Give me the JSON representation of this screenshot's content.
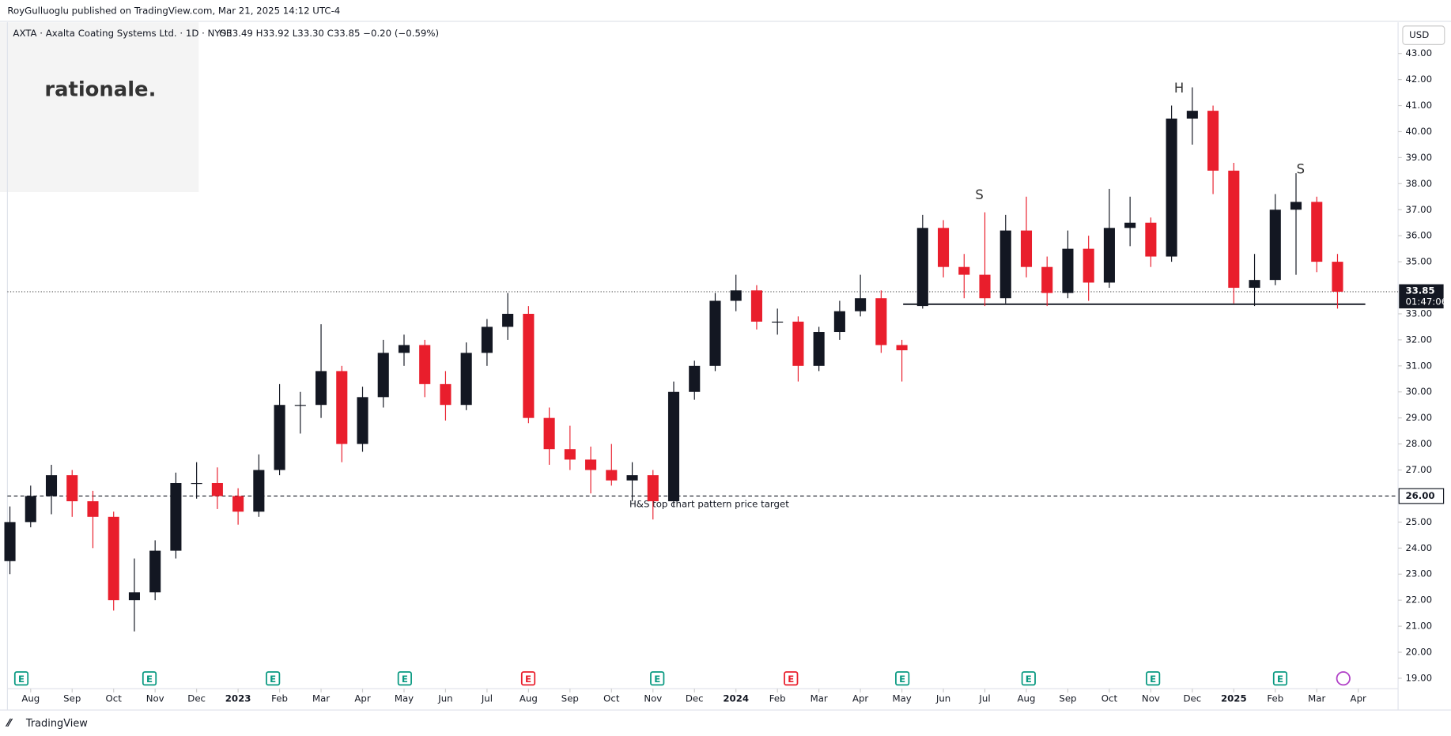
{
  "header": {
    "publisher": "RoyGulluoglu published on TradingView.com, Mar 21, 2025 14:12 UTC-4",
    "symbol": "AXTA · Axalta Coating Systems Ltd. · 1D · NYSE",
    "ohlc": "O33.49 H33.92 L33.30 C33.85 −0.20 (−0.59%)",
    "watermark": "rationale."
  },
  "footer": {
    "brand": "TradingView"
  },
  "chart_data": {
    "type": "candlestick",
    "currency": "USD",
    "up_color": "#131722",
    "down_color": "#e91e2c",
    "x": [
      -0.5,
      0,
      0.5,
      1,
      1.5,
      2,
      2.5,
      3,
      3.5,
      4,
      4.5,
      5,
      5.5,
      6,
      6.5,
      7,
      7.5,
      8,
      8.5,
      9,
      9.5,
      10,
      10.5,
      11,
      11.5,
      12,
      12.5,
      13,
      13.5,
      14,
      14.5,
      15,
      15.5,
      16,
      16.5,
      17,
      17.5,
      18,
      18.5,
      19,
      19.5,
      20,
      20.5,
      21,
      21.5,
      22,
      22.5,
      23,
      23.5,
      24,
      24.5,
      25,
      25.5,
      26,
      26.5,
      27,
      27.5,
      28,
      28.5,
      29,
      29.5,
      30,
      30.5,
      31,
      31.5
    ],
    "open": [
      23.5,
      25.0,
      26.0,
      26.8,
      25.8,
      25.2,
      22.0,
      22.3,
      23.9,
      26.5,
      26.5,
      26.0,
      25.4,
      27.0,
      29.5,
      29.5,
      30.8,
      28.0,
      29.8,
      31.5,
      31.8,
      30.3,
      29.5,
      31.5,
      32.5,
      33.0,
      29.0,
      27.8,
      27.4,
      27.0,
      26.6,
      26.8,
      25.8,
      30.0,
      31.0,
      33.5,
      33.9,
      32.7,
      32.7,
      31.0,
      32.3,
      33.1,
      33.6,
      31.8,
      33.3,
      36.3,
      34.8,
      34.5,
      33.6,
      36.2,
      34.8,
      33.8,
      35.5,
      34.2,
      36.3,
      36.5,
      35.2,
      40.5,
      40.8,
      38.5,
      34.0,
      34.3,
      37.0,
      37.3,
      35.0
    ],
    "high": [
      25.6,
      26.4,
      27.2,
      27.0,
      26.2,
      25.4,
      23.6,
      24.3,
      26.9,
      27.3,
      27.1,
      26.3,
      27.6,
      30.3,
      30.0,
      32.6,
      31.0,
      30.2,
      32.0,
      32.2,
      32.0,
      30.8,
      31.9,
      32.8,
      33.8,
      33.3,
      29.4,
      28.7,
      27.9,
      28.0,
      27.3,
      27.0,
      30.4,
      31.2,
      33.8,
      34.5,
      34.1,
      33.2,
      32.9,
      32.5,
      33.5,
      34.5,
      33.9,
      32.0,
      36.8,
      36.6,
      35.3,
      36.9,
      36.8,
      37.5,
      35.2,
      36.2,
      36.0,
      37.8,
      37.5,
      36.7,
      41.0,
      41.7,
      41.0,
      38.8,
      35.3,
      37.6,
      38.4,
      37.5,
      35.3
    ],
    "low": [
      23.0,
      24.8,
      25.3,
      25.2,
      24.0,
      21.6,
      20.8,
      22.0,
      23.6,
      25.9,
      25.5,
      24.9,
      25.2,
      26.8,
      28.4,
      29.0,
      27.3,
      27.7,
      29.4,
      31.0,
      29.8,
      28.9,
      29.3,
      31.0,
      32.0,
      28.8,
      27.2,
      27.0,
      26.1,
      26.4,
      25.8,
      25.1,
      25.6,
      29.7,
      30.8,
      33.1,
      32.4,
      32.2,
      30.4,
      30.8,
      32.0,
      32.9,
      31.5,
      30.4,
      33.2,
      34.4,
      33.6,
      33.3,
      33.4,
      34.4,
      33.3,
      33.6,
      33.5,
      34.0,
      35.6,
      34.8,
      35.0,
      39.5,
      37.6,
      33.4,
      33.3,
      34.1,
      34.5,
      34.6,
      33.2
    ],
    "close": [
      25.0,
      26.0,
      26.8,
      25.8,
      25.2,
      22.0,
      22.3,
      23.9,
      26.5,
      26.5,
      26.0,
      25.4,
      27.0,
      29.5,
      29.5,
      30.8,
      28.0,
      29.8,
      31.5,
      31.8,
      30.3,
      29.5,
      31.5,
      32.5,
      33.0,
      29.0,
      27.8,
      27.4,
      27.0,
      26.6,
      26.8,
      25.8,
      30.0,
      31.0,
      33.5,
      33.9,
      32.7,
      32.7,
      31.0,
      32.3,
      33.1,
      33.6,
      31.8,
      31.6,
      36.3,
      34.8,
      34.5,
      33.6,
      36.2,
      34.8,
      33.8,
      35.5,
      34.2,
      36.3,
      36.5,
      35.2,
      40.5,
      40.8,
      38.5,
      34.0,
      34.3,
      37.0,
      37.3,
      35.0,
      33.85
    ],
    "xlim": [
      -0.56,
      32.96
    ],
    "ylim": [
      18.6,
      44.2
    ],
    "xticks": [
      {
        "value": 0,
        "label": "Aug"
      },
      {
        "value": 1,
        "label": "Sep"
      },
      {
        "value": 2,
        "label": "Oct"
      },
      {
        "value": 3,
        "label": "Nov"
      },
      {
        "value": 4,
        "label": "Dec"
      },
      {
        "value": 5,
        "label": "2023"
      },
      {
        "value": 6,
        "label": "Feb"
      },
      {
        "value": 7,
        "label": "Mar"
      },
      {
        "value": 8,
        "label": "Apr"
      },
      {
        "value": 9,
        "label": "May"
      },
      {
        "value": 10,
        "label": "Jun"
      },
      {
        "value": 11,
        "label": "Jul"
      },
      {
        "value": 12,
        "label": "Aug"
      },
      {
        "value": 13,
        "label": "Sep"
      },
      {
        "value": 14,
        "label": "Oct"
      },
      {
        "value": 15,
        "label": "Nov"
      },
      {
        "value": 16,
        "label": "Dec"
      },
      {
        "value": 17,
        "label": "2024"
      },
      {
        "value": 18,
        "label": "Feb"
      },
      {
        "value": 19,
        "label": "Mar"
      },
      {
        "value": 20,
        "label": "Apr"
      },
      {
        "value": 21,
        "label": "May"
      },
      {
        "value": 22,
        "label": "Jun"
      },
      {
        "value": 23,
        "label": "Jul"
      },
      {
        "value": 24,
        "label": "Aug"
      },
      {
        "value": 25,
        "label": "Sep"
      },
      {
        "value": 26,
        "label": "Oct"
      },
      {
        "value": 27,
        "label": "Nov"
      },
      {
        "value": 28,
        "label": "Dec"
      },
      {
        "value": 29,
        "label": "2025"
      },
      {
        "value": 30,
        "label": "Feb"
      },
      {
        "value": 31,
        "label": "Mar"
      },
      {
        "value": 32,
        "label": "Apr"
      }
    ],
    "yticks": [
      {
        "value": 19,
        "label": "19.00"
      },
      {
        "value": 20,
        "label": "20.00"
      },
      {
        "value": 21,
        "label": "21.00"
      },
      {
        "value": 22,
        "label": "22.00"
      },
      {
        "value": 23,
        "label": "23.00"
      },
      {
        "value": 24,
        "label": "24.00"
      },
      {
        "value": 25,
        "label": "25.00"
      },
      {
        "value": 27,
        "label": "27.00"
      },
      {
        "value": 28,
        "label": "28.00"
      },
      {
        "value": 29,
        "label": "29.00"
      },
      {
        "value": 30,
        "label": "30.00"
      },
      {
        "value": 31,
        "label": "31.00"
      },
      {
        "value": 32,
        "label": "32.00"
      },
      {
        "value": 33,
        "label": "33.00"
      },
      {
        "value": 35,
        "label": "35.00"
      },
      {
        "value": 36,
        "label": "36.00"
      },
      {
        "value": 37,
        "label": "37.00"
      },
      {
        "value": 38,
        "label": "38.00"
      },
      {
        "value": 39,
        "label": "39.00"
      },
      {
        "value": 40,
        "label": "40.00"
      },
      {
        "value": 41,
        "label": "41.00"
      },
      {
        "value": 42,
        "label": "42.00"
      },
      {
        "value": 43,
        "label": "43.00"
      }
    ],
    "last_price": 33.85,
    "countdown": "01:47:06",
    "target": {
      "value": 26,
      "label": "26.00",
      "text": "H&S top chart pattern price target"
    },
    "neckline": {
      "value": 33.37,
      "x": [
        21.03,
        32.17
      ]
    },
    "pattern_labels": [
      "S",
      "H",
      "S"
    ],
    "earnings_label": "E"
  }
}
